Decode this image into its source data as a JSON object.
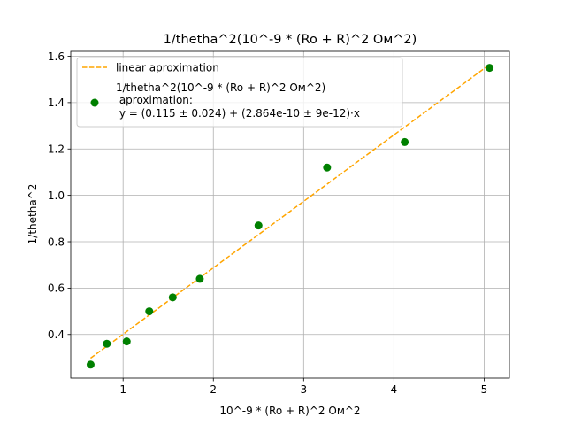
{
  "chart_data": {
    "type": "scatter",
    "title": "1/thetha^2(10^-9 * (Ro + R)^2 Ом^2)",
    "xlabel": "10^-9 * (Ro + R)^2 Ом^2",
    "ylabel": "1/thetha^2",
    "xlim": [
      0.42,
      5.28
    ],
    "ylim": [
      0.212,
      1.621
    ],
    "xticks": [
      "1",
      "2",
      "3",
      "4",
      "5"
    ],
    "yticks": [
      "0.4",
      "0.6",
      "0.8",
      "1.0",
      "1.2",
      "1.4",
      "1.6"
    ],
    "grid": true,
    "legend_position": "upper-left",
    "series": [
      {
        "name": "1/thetha^2(10^-9 * (Ro + R)^2 Ом^2) aproximation: y = (0.115 ± 0.024) + (2.864e-10 ± 9e-12)·x",
        "legend_lines": [
          "1/thetha^2(10^-9 * (Ro + R)^2 Ом^2)",
          " aproximation:",
          " y = (0.115 ± 0.024) + (2.864e-10 ± 9e-12)·x"
        ],
        "kind": "scatter",
        "color": "#008000",
        "x": [
          0.64,
          0.82,
          1.04,
          1.29,
          1.55,
          1.85,
          2.5,
          3.26,
          4.12,
          5.06
        ],
        "y": [
          0.27,
          0.36,
          0.37,
          0.5,
          0.56,
          0.64,
          0.87,
          1.12,
          1.23,
          1.55
        ]
      },
      {
        "name": "linear aproximation",
        "kind": "line",
        "style": "dashed",
        "color": "#ffa500",
        "x": [
          0.64,
          5.06
        ],
        "y": [
          0.298,
          1.564
        ]
      }
    ]
  }
}
